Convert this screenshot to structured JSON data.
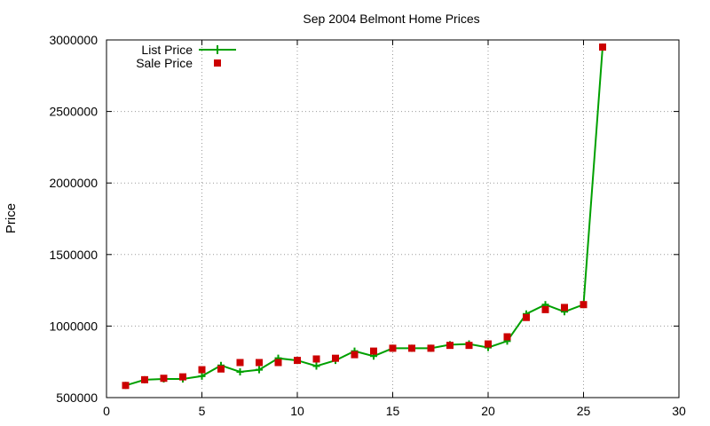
{
  "chart_data": {
    "type": "line",
    "title": "Sep 2004 Belmont Home Prices",
    "xlabel": "",
    "ylabel": "Price",
    "xlim": [
      0,
      30
    ],
    "ylim": [
      500000,
      3000000
    ],
    "xticks": [
      0,
      5,
      10,
      15,
      20,
      25,
      30
    ],
    "yticks": [
      500000,
      1000000,
      1500000,
      2000000,
      2500000,
      3000000
    ],
    "xtick_labels": [
      "0",
      "5",
      "10",
      "15",
      "20",
      "25",
      "30"
    ],
    "ytick_labels": [
      "500000",
      "1000000",
      "1500000",
      "2000000",
      "2500000",
      "3000000"
    ],
    "grid": true,
    "legend_position": "top-left",
    "series": [
      {
        "name": "List Price",
        "style": "line-with-plus-markers",
        "color": "#00a000",
        "x": [
          1,
          2,
          3,
          4,
          5,
          6,
          7,
          8,
          9,
          10,
          11,
          12,
          13,
          14,
          15,
          16,
          17,
          18,
          19,
          20,
          21,
          22,
          23,
          24,
          25,
          26
        ],
        "values": [
          585000,
          625000,
          630000,
          630000,
          650000,
          725000,
          680000,
          695000,
          775000,
          760000,
          720000,
          760000,
          825000,
          790000,
          845000,
          845000,
          845000,
          870000,
          875000,
          850000,
          895000,
          1085000,
          1150000,
          1100000,
          1150000,
          2950000
        ]
      },
      {
        "name": "Sale Price",
        "style": "square-markers",
        "color": "#cc0000",
        "x": [
          1,
          2,
          3,
          4,
          5,
          6,
          7,
          8,
          9,
          10,
          11,
          12,
          13,
          14,
          15,
          16,
          17,
          18,
          19,
          20,
          21,
          22,
          23,
          24,
          25,
          26
        ],
        "values": [
          585000,
          625000,
          635000,
          645000,
          695000,
          700000,
          745000,
          745000,
          745000,
          760000,
          770000,
          775000,
          800000,
          825000,
          845000,
          845000,
          845000,
          865000,
          865000,
          875000,
          925000,
          1060000,
          1115000,
          1130000,
          1150000,
          2950000
        ]
      }
    ]
  }
}
